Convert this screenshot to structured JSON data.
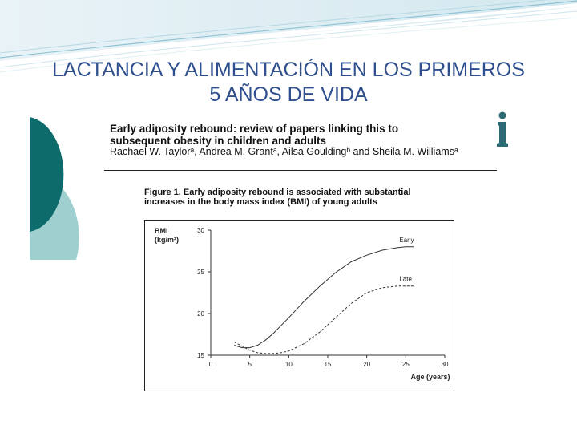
{
  "slide": {
    "title_line1": "LACTANCIA Y ALIMENTACIÓN EN LOS PRIMEROS",
    "title_line2": "5 AÑOS DE VIDA"
  },
  "article": {
    "title_line1": "Early adiposity rebound: review of papers linking this to",
    "title_line2": "subsequent obesity in children and adults",
    "authors": "Rachael W. Taylorᵃ, Andrea M. Grantᵃ, Ailsa Gouldingᵇ and Sheila M. Williamsᵃ",
    "figure_caption_line1": "Figure 1. Early adiposity rebound is associated with substantial",
    "figure_caption_line2": "increases in the body mass index (BMI) of young adults",
    "logo_icon": "info-i-icon"
  },
  "colors": {
    "title": "#2f4f8f",
    "teal_dark": "#0e6b6b",
    "teal_light": "#9fcfcf"
  },
  "chart_data": {
    "type": "line",
    "ylabel": "BMI\n(kg/m²)",
    "xlabel": "Age (years)",
    "xlim": [
      0,
      30
    ],
    "ylim": [
      15,
      30
    ],
    "xticks": [
      0,
      5,
      10,
      15,
      20,
      25,
      30
    ],
    "yticks": [
      15,
      20,
      25,
      30
    ],
    "grid": false,
    "legend": "inline-labels",
    "series": [
      {
        "name": "Early",
        "style": "solid",
        "x": [
          3,
          4,
          5,
          6,
          7,
          8,
          10,
          12,
          14,
          16,
          18,
          20,
          22,
          24,
          25,
          26
        ],
        "y": [
          16.2,
          15.9,
          15.9,
          16.2,
          16.8,
          17.6,
          19.5,
          21.5,
          23.3,
          24.9,
          26.2,
          27.0,
          27.6,
          27.9,
          28.0,
          28.0
        ]
      },
      {
        "name": "Late",
        "style": "dashed",
        "x": [
          3,
          4,
          5,
          6,
          7,
          8,
          9,
          10,
          12,
          14,
          16,
          18,
          20,
          22,
          24,
          25,
          26
        ],
        "y": [
          16.6,
          16.1,
          15.6,
          15.3,
          15.2,
          15.2,
          15.3,
          15.5,
          16.4,
          17.8,
          19.5,
          21.2,
          22.5,
          23.1,
          23.3,
          23.3,
          23.3
        ]
      }
    ]
  }
}
